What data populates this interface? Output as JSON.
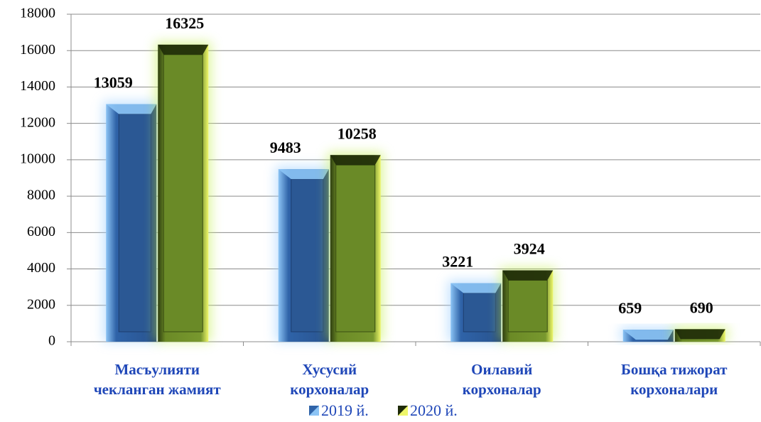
{
  "chart_data": {
    "type": "bar",
    "categories": [
      "Масъулияти\nчекланган жамият",
      "Хусусий\nкорхоналар",
      "Оилавий\nкорхоналар",
      "Бошқа тижорат\nкорхоналари"
    ],
    "series": [
      {
        "name": "2019 й.",
        "color": "#2f63a8",
        "values": [
          13059,
          9483,
          3221,
          659
        ]
      },
      {
        "name": "2020 й.",
        "color": "#6b8a26",
        "values": [
          16325,
          10258,
          3924,
          690
        ]
      }
    ],
    "ylim": [
      0,
      18000
    ],
    "yticks": [
      0,
      2000,
      4000,
      6000,
      8000,
      10000,
      12000,
      14000,
      16000,
      18000
    ],
    "grid": true,
    "legend": "bottom"
  }
}
